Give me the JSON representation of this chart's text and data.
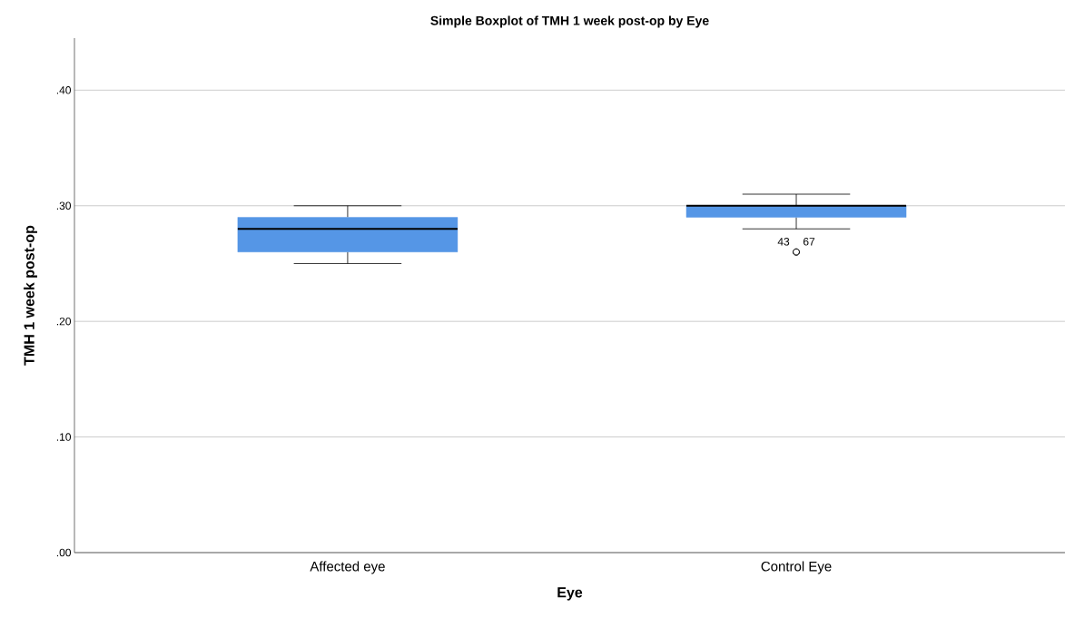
{
  "chart_data": {
    "type": "box",
    "title": "Simple Boxplot of TMH  1 week post-op by Eye",
    "xlabel": "Eye",
    "ylabel": "TMH  1 week post-op",
    "categories": [
      "Affected eye",
      "Control Eye"
    ],
    "series": [
      {
        "color": "#5596e6",
        "boxes": [
          {
            "low": 0.25,
            "q1": 0.26,
            "median": 0.28,
            "q3": 0.29,
            "high": 0.3
          },
          {
            "low": 0.28,
            "q1": 0.29,
            "median": 0.3,
            "q3": 0.3,
            "high": 0.31,
            "outliers": [
              0.26,
              0.26
            ]
          }
        ]
      }
    ],
    "ylim": [
      0,
      0.445
    ],
    "yticks": [
      {
        "value": 0,
        "label": ".00"
      },
      {
        "value": 0.1,
        "label": ".10"
      },
      {
        "value": 0.2,
        "label": ".20"
      },
      {
        "value": 0.3,
        "label": ".30"
      },
      {
        "value": 0.4,
        "label": ".40"
      }
    ],
    "grid": "y",
    "annotations": [
      "43",
      "67"
    ]
  }
}
